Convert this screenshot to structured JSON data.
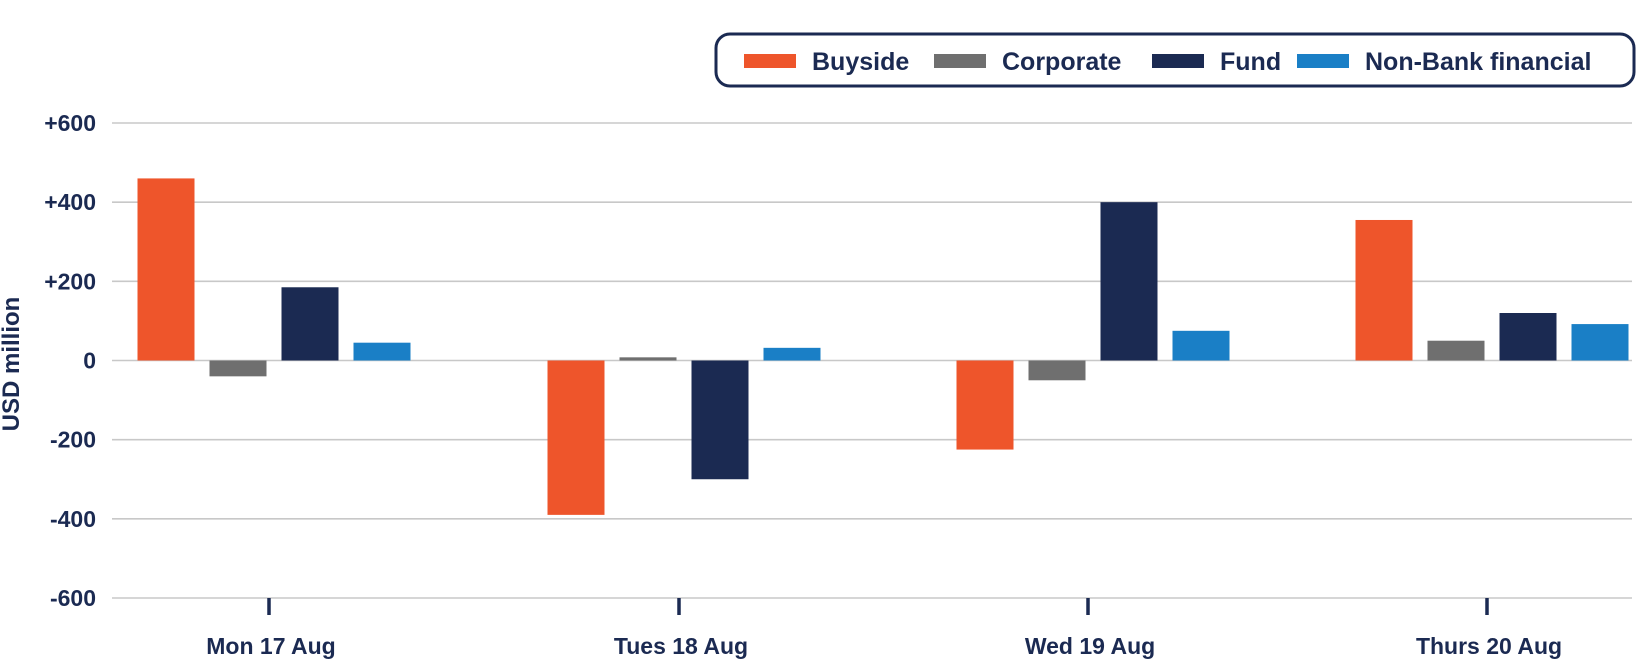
{
  "chart_data": {
    "type": "bar",
    "title": "",
    "xlabel": "",
    "ylabel": "USD million",
    "ylim": [
      -600,
      600
    ],
    "yticks": [
      600,
      400,
      200,
      0,
      -200,
      -400,
      -600
    ],
    "ytick_labels": [
      "+600",
      "+400",
      "+200",
      "0",
      "-200",
      "-400",
      "-600"
    ],
    "grid": true,
    "legend_position": "top-right",
    "categories": [
      "Mon 17 Aug",
      "Tues 18 Aug",
      "Wed 19 Aug",
      "Thurs 20 Aug"
    ],
    "series": [
      {
        "name": "Buyside",
        "color": "#ee552b",
        "values": [
          460,
          -390,
          -225,
          355
        ]
      },
      {
        "name": "Corporate",
        "color": "#6f6f6f",
        "values": [
          -40,
          8,
          -50,
          50
        ]
      },
      {
        "name": "Fund",
        "color": "#1b2a52",
        "values": [
          185,
          -300,
          400,
          120
        ]
      },
      {
        "name": "Non-Bank financial",
        "color": "#1a7fc6",
        "values": [
          45,
          32,
          75,
          92
        ]
      }
    ]
  },
  "colors": {
    "text": "#1b2a52",
    "grid": "#c8c8c8",
    "legend_border": "#1b2a52"
  }
}
